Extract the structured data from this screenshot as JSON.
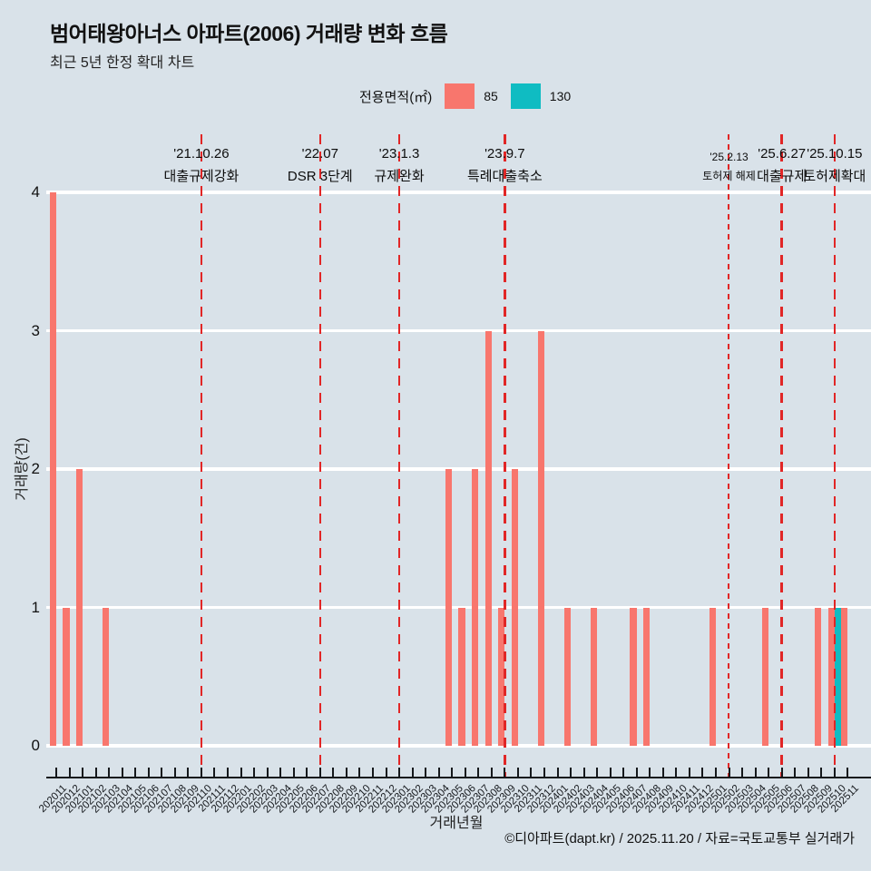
{
  "title": "범어태왕아너스 아파트(2006) 거래량 변화 흐름",
  "subtitle": "최근 5년 한정 확대 차트",
  "legend": {
    "label": "전용면적(㎡)",
    "items": [
      {
        "name": "85",
        "color": "#F8766D"
      },
      {
        "name": "130",
        "color": "#0FBCC2"
      }
    ]
  },
  "footer": "©디아파트(dapt.kr) / 2025.11.20 / 자료=국토교통부 실거래가",
  "chart_data": {
    "type": "bar",
    "title": "범어태왕아너스 아파트(2006) 거래량 변화 흐름",
    "xlabel": "거래년월",
    "ylabel": "거래량(건)",
    "ylim": [
      0,
      4
    ],
    "yticks": [
      0,
      1,
      2,
      3,
      4
    ],
    "grid": "horizontal-white",
    "legend_position": "top-center",
    "categories": [
      "202011",
      "202012",
      "202101",
      "202102",
      "202103",
      "202104",
      "202105",
      "202106",
      "202107",
      "202108",
      "202109",
      "202110",
      "202111",
      "202112",
      "202201",
      "202202",
      "202203",
      "202204",
      "202205",
      "202206",
      "202207",
      "202208",
      "202209",
      "202210",
      "202211",
      "202212",
      "202301",
      "202302",
      "202303",
      "202304",
      "202305",
      "202306",
      "202307",
      "202308",
      "202309",
      "202310",
      "202311",
      "202312",
      "202401",
      "202402",
      "202403",
      "202404",
      "202405",
      "202406",
      "202407",
      "202408",
      "202409",
      "202410",
      "202411",
      "202412",
      "202501",
      "202502",
      "202503",
      "202504",
      "202505",
      "202506",
      "202507",
      "202508",
      "202509",
      "202510",
      "202511"
    ],
    "series": [
      {
        "name": "85",
        "color": "#F8766D",
        "values": [
          4,
          1,
          2,
          0,
          1,
          0,
          0,
          0,
          0,
          0,
          0,
          0,
          0,
          0,
          0,
          0,
          0,
          0,
          0,
          0,
          0,
          0,
          0,
          0,
          0,
          0,
          0,
          0,
          0,
          0,
          2,
          1,
          2,
          3,
          1,
          2,
          0,
          3,
          0,
          1,
          0,
          1,
          0,
          0,
          1,
          1,
          0,
          0,
          0,
          0,
          1,
          0,
          0,
          0,
          1,
          0,
          0,
          0,
          1,
          1,
          1
        ]
      },
      {
        "name": "130",
        "color": "#0FBCC2",
        "values": [
          0,
          0,
          0,
          0,
          0,
          0,
          0,
          0,
          0,
          0,
          0,
          0,
          0,
          0,
          0,
          0,
          0,
          0,
          0,
          0,
          0,
          0,
          0,
          0,
          0,
          0,
          0,
          0,
          0,
          0,
          0,
          0,
          0,
          0,
          0,
          0,
          0,
          0,
          0,
          0,
          0,
          0,
          0,
          0,
          0,
          0,
          0,
          0,
          0,
          0,
          0,
          0,
          0,
          0,
          0,
          0,
          0,
          0,
          0,
          1,
          0
        ]
      }
    ],
    "annotations": [
      {
        "month": "202110",
        "date": "'21.10.26",
        "label": "대출규제강화",
        "style": "normal"
      },
      {
        "month": "202207",
        "date": "'22.07",
        "label": "DSR 3단계",
        "style": "normal"
      },
      {
        "month": "202301",
        "date": "'23.1.3",
        "label": "규제완화",
        "style": "normal"
      },
      {
        "month": "202309",
        "date": "'23.9.7",
        "label": "특례대출축소",
        "style": "normal"
      },
      {
        "month": "202502",
        "date": "'25.2.13",
        "label": "토허제 해제",
        "style": "small"
      },
      {
        "month": "202506",
        "date": "'25.6.27",
        "label": "대출규제",
        "style": "normal"
      },
      {
        "month": "202510",
        "date": "'25.10.15",
        "label": "토허제확대",
        "style": "normal"
      }
    ],
    "annotation_line_color": "#E12626",
    "background_color": "#d9e2e9"
  }
}
